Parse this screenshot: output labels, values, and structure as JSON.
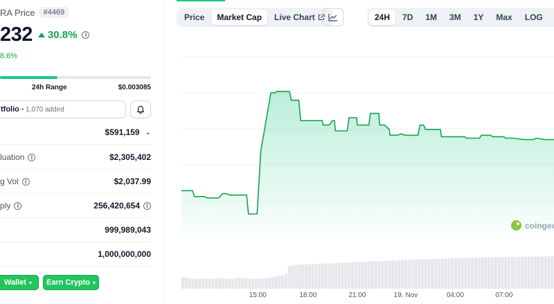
{
  "header": {
    "price_title": "RA Price",
    "rank": "#4469",
    "price": "232",
    "change_pct": "30.8%",
    "sub_change": "8.6%"
  },
  "range": {
    "label": "24h Range",
    "high": "$0.003085",
    "fill_fraction": 0.38
  },
  "portfolio": {
    "label": "tfolio",
    "added": "• 1,070 added"
  },
  "stats": [
    {
      "label": "",
      "value": "$591,159",
      "chevron": true,
      "info": false
    },
    {
      "label": "luation",
      "value": "$2,305,402",
      "info": true
    },
    {
      "label": "g Vol",
      "value": "$2,037.99",
      "info": true
    },
    {
      "label": "ply",
      "value": "256,420,654",
      "info": true,
      "value_info": true
    },
    {
      "label": "",
      "value": "999,989,043",
      "info": false
    },
    {
      "label": "",
      "value": "1,000,000,000",
      "info": false
    }
  ],
  "buttons": {
    "wallet": "Wallet",
    "earn": "Earn Crypto"
  },
  "chart_tabs": [
    {
      "label": "Price",
      "active": false
    },
    {
      "label": "Market Cap",
      "active": true
    },
    {
      "label": "Live Chart",
      "active": false,
      "external": true
    }
  ],
  "range_tabs": [
    {
      "label": "24H",
      "active": true
    },
    {
      "label": "7D",
      "active": false
    },
    {
      "label": "1M",
      "active": false
    },
    {
      "label": "3M",
      "active": false
    },
    {
      "label": "1Y",
      "active": false
    },
    {
      "label": "Max",
      "active": false
    },
    {
      "label": "LOG",
      "active": false
    }
  ],
  "icons": {
    "trend": "line-chart-icon",
    "calendar": "calendar-icon",
    "bell": "bell-icon",
    "external": "external-link-icon"
  },
  "watermark": "coingec",
  "colors": {
    "accent": "#16c784",
    "line": "#16a34a",
    "up": "#16a34a",
    "volume": "#e5e7eb"
  },
  "chart_data": {
    "type": "area",
    "x_ticks": [
      "15:00",
      "18:00",
      "21:00",
      "19. Nov",
      "04:00",
      "07:00"
    ],
    "x_tick_fractions": [
      0.205,
      0.34,
      0.472,
      0.602,
      0.735,
      0.866
    ],
    "ylim": [
      0,
      1
    ],
    "grid": true,
    "series": [
      {
        "values": [
          [
            0.0,
            0.31
          ],
          [
            0.03,
            0.31
          ],
          [
            0.035,
            0.27
          ],
          [
            0.06,
            0.27
          ],
          [
            0.07,
            0.26
          ],
          [
            0.1,
            0.26
          ],
          [
            0.11,
            0.29
          ],
          [
            0.12,
            0.29
          ],
          [
            0.13,
            0.28
          ],
          [
            0.175,
            0.28
          ],
          [
            0.18,
            0.15
          ],
          [
            0.198,
            0.15
          ],
          [
            0.203,
            0.15
          ],
          [
            0.213,
            0.58
          ],
          [
            0.24,
            0.98
          ],
          [
            0.252,
            0.98
          ],
          [
            0.255,
            0.99
          ],
          [
            0.29,
            0.99
          ],
          [
            0.295,
            0.93
          ],
          [
            0.315,
            0.93
          ],
          [
            0.32,
            0.79
          ],
          [
            0.378,
            0.79
          ],
          [
            0.38,
            0.76
          ],
          [
            0.396,
            0.76
          ],
          [
            0.4,
            0.77
          ],
          [
            0.405,
            0.79
          ],
          [
            0.411,
            0.79
          ],
          [
            0.413,
            0.72
          ],
          [
            0.445,
            0.72
          ],
          [
            0.45,
            0.81
          ],
          [
            0.47,
            0.81
          ],
          [
            0.472,
            0.76
          ],
          [
            0.503,
            0.76
          ],
          [
            0.507,
            0.84
          ],
          [
            0.53,
            0.84
          ],
          [
            0.532,
            0.76
          ],
          [
            0.545,
            0.76
          ],
          [
            0.558,
            0.73
          ],
          [
            0.56,
            0.69
          ],
          [
            0.58,
            0.69
          ],
          [
            0.59,
            0.7
          ],
          [
            0.6,
            0.69
          ],
          [
            0.635,
            0.69
          ],
          [
            0.64,
            0.76
          ],
          [
            0.65,
            0.76
          ],
          [
            0.655,
            0.73
          ],
          [
            0.695,
            0.73
          ],
          [
            0.698,
            0.68
          ],
          [
            0.76,
            0.68
          ],
          [
            0.765,
            0.67
          ],
          [
            0.8,
            0.67
          ],
          [
            0.805,
            0.69
          ],
          [
            0.83,
            0.69
          ],
          [
            0.835,
            0.68
          ],
          [
            0.865,
            0.68
          ],
          [
            0.87,
            0.67
          ],
          [
            0.88,
            0.67
          ],
          [
            0.89,
            0.67
          ],
          [
            0.92,
            0.66
          ],
          [
            0.945,
            0.66
          ],
          [
            0.952,
            0.67
          ],
          [
            0.975,
            0.66
          ],
          [
            1.0,
            0.66
          ]
        ]
      }
    ],
    "volume": [
      0.35,
      0.34,
      0.32,
      0.31,
      0.3,
      0.3,
      0.31,
      0.32,
      0.31,
      0.3,
      0.31,
      0.33,
      0.32,
      0.31,
      0.3,
      0.31,
      0.33,
      0.34,
      0.33,
      0.32,
      0.31,
      0.3,
      0.31,
      0.32,
      0.31,
      0.32,
      0.34,
      0.36,
      0.38,
      0.4,
      0.42,
      0.45,
      0.7,
      0.72,
      0.73,
      0.74,
      0.74,
      0.75,
      0.75,
      0.76,
      0.76,
      0.77,
      0.77,
      0.78,
      0.78,
      0.78,
      0.79,
      0.79,
      0.8,
      0.8,
      0.81,
      0.81,
      0.82,
      0.82,
      0.82,
      0.83,
      0.83,
      0.84,
      0.84,
      0.85,
      0.85,
      0.86,
      0.86,
      0.87,
      0.87,
      0.88,
      0.88,
      0.89,
      0.89,
      0.9,
      0.9,
      0.9,
      0.91,
      0.91,
      0.91,
      0.92,
      0.92,
      0.92,
      0.93,
      0.93,
      0.93,
      0.94,
      0.94,
      0.94,
      0.95,
      0.95,
      0.95,
      0.95,
      0.96,
      0.96,
      0.96,
      0.96,
      0.97,
      0.97,
      0.97,
      0.97,
      0.97,
      0.98,
      0.98,
      0.98,
      0.98,
      0.98,
      0.98,
      0.99,
      0.99,
      0.99,
      0.99,
      0.99,
      0.99,
      0.99,
      1.0,
      1.0
    ]
  }
}
